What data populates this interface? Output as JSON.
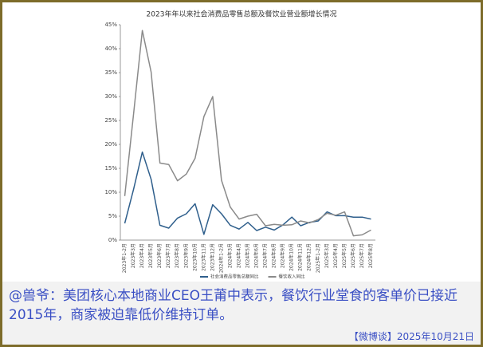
{
  "chart_data": {
    "type": "line",
    "title": "2023年年以来社会消费品零售总额及餐饮业营业额增长情况",
    "categories": [
      "2023年1-2月",
      "2023年3月",
      "2023年4月",
      "2023年5月",
      "2023年6月",
      "2023年7月",
      "2023年8月",
      "2023年9月",
      "2023年10月",
      "2023年11月",
      "2023年12月",
      "2024年1-2月",
      "2024年3月",
      "2024年4月",
      "2024年5月",
      "2024年6月",
      "2024年7月",
      "2024年8月",
      "2024年9月",
      "2024年10月",
      "2024年11月",
      "2024年12月",
      "2025年1-2月",
      "2025年3月",
      "2025年4月",
      "2025年5月",
      "2025年6月",
      "2025年7月",
      "2025年8月"
    ],
    "series": [
      {
        "name": "社会消费品零售总额同比",
        "color": "#2f5f8c",
        "values": [
          3.5,
          10.6,
          18.4,
          12.7,
          3.1,
          2.5,
          4.6,
          5.5,
          7.6,
          1.2,
          7.4,
          5.5,
          3.1,
          2.3,
          3.7,
          2.0,
          2.7,
          2.1,
          3.2,
          4.8,
          3.0,
          3.7,
          4.0,
          5.9,
          5.1,
          5.1,
          4.8,
          4.8,
          4.4
        ]
      },
      {
        "name": "餐饮收入同比",
        "color": "#8a8a8a",
        "values": [
          9.2,
          26.3,
          43.8,
          35.1,
          16.1,
          15.8,
          12.4,
          13.8,
          17.1,
          25.8,
          30.0,
          12.5,
          6.9,
          4.4,
          5.0,
          5.4,
          3.0,
          3.3,
          3.1,
          3.2,
          4.0,
          3.6,
          4.3,
          5.6,
          5.2,
          5.9,
          0.9,
          1.1,
          2.1
        ]
      }
    ],
    "ylim": [
      0,
      45
    ],
    "yticks": [
      {
        "value": 0,
        "label": "0%"
      },
      {
        "value": 5,
        "label": "5%"
      },
      {
        "value": 10,
        "label": "10%"
      },
      {
        "value": 15,
        "label": "15%"
      },
      {
        "value": 20,
        "label": "20%"
      },
      {
        "value": 25,
        "label": "25%"
      },
      {
        "value": 30,
        "label": "30%"
      },
      {
        "value": 35,
        "label": "35%"
      },
      {
        "value": 40,
        "label": "40%"
      },
      {
        "value": 45,
        "label": "45%"
      }
    ],
    "legend": "bottom"
  },
  "caption": "@兽爷：美团核心本地商业CEO王莆中表示，餐饮行业堂食的客单价已接近2015年，商家被迫靠低价维持订单。",
  "footer": "【微博谈】2025年10月21日"
}
